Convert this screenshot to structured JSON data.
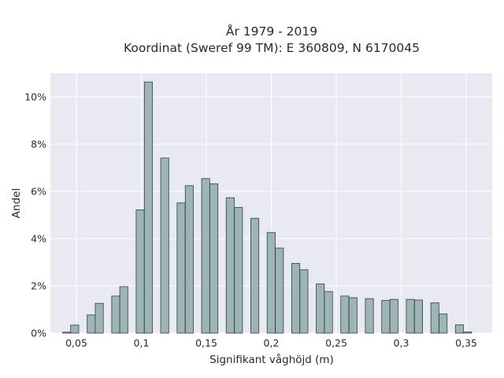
{
  "chart_data": {
    "type": "bar",
    "title": "År 1979 - 2019",
    "subtitle": "Koordinat (Sweref 99 TM): E 360809, N 6170045",
    "xlabel": "Signifikant våghöjd (m)",
    "ylabel": "Andel",
    "xlim": [
      0.03,
      0.37
    ],
    "ylim": [
      0,
      0.11
    ],
    "grid": true,
    "bar_width": 0.0062,
    "bar_color": "#9db5b5",
    "bar_edge_color": "#2f3f3f",
    "plot_background": "#e9e9f2",
    "x_ticks": [
      {
        "value": 0.05,
        "label": "0,05"
      },
      {
        "value": 0.1,
        "label": "0,1"
      },
      {
        "value": 0.15,
        "label": "0,15"
      },
      {
        "value": 0.2,
        "label": "0,2"
      },
      {
        "value": 0.25,
        "label": "0,25"
      },
      {
        "value": 0.3,
        "label": "0,3"
      },
      {
        "value": 0.35,
        "label": "0,35"
      }
    ],
    "y_ticks": [
      {
        "value": 0,
        "label": "0%"
      },
      {
        "value": 0.02,
        "label": "2%"
      },
      {
        "value": 0.04,
        "label": "4%"
      },
      {
        "value": 0.06,
        "label": "6%"
      },
      {
        "value": 0.08,
        "label": "8%"
      },
      {
        "value": 0.1,
        "label": "10%"
      }
    ],
    "x": [
      0.0425,
      0.0487,
      0.0614,
      0.0676,
      0.0803,
      0.0865,
      0.0991,
      0.1054,
      0.118,
      0.1306,
      0.1369,
      0.1495,
      0.1558,
      0.1684,
      0.1747,
      0.1873,
      0.1999,
      0.2062,
      0.2188,
      0.2251,
      0.2377,
      0.244,
      0.2566,
      0.2629,
      0.2755,
      0.2881,
      0.2944,
      0.307,
      0.3133,
      0.3259,
      0.3322,
      0.3448,
      0.3511
    ],
    "values": [
      0.0004,
      0.0034,
      0.0077,
      0.0126,
      0.0157,
      0.0197,
      0.0522,
      0.1063,
      0.0741,
      0.0551,
      0.0624,
      0.0654,
      0.0632,
      0.0573,
      0.0532,
      0.0486,
      0.0426,
      0.036,
      0.0295,
      0.0268,
      0.0208,
      0.0176,
      0.0157,
      0.015,
      0.0146,
      0.0138,
      0.0143,
      0.0143,
      0.014,
      0.0128,
      0.0081,
      0.0035,
      0.0005
    ]
  }
}
